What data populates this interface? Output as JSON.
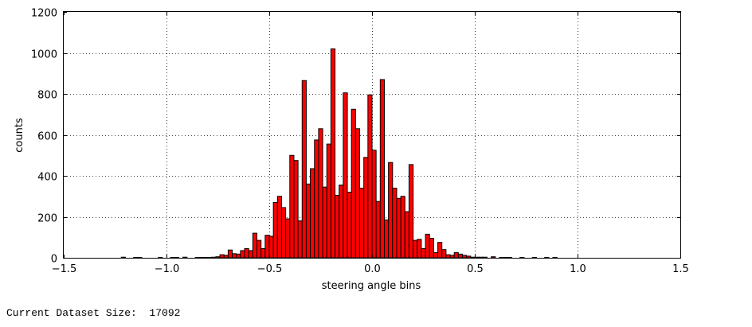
{
  "chart_data": {
    "type": "bar",
    "title": "",
    "xlabel": "steering angle bins",
    "ylabel": "counts",
    "xlim": [
      -1.5,
      1.5
    ],
    "ylim": [
      0,
      1200
    ],
    "xticks": [
      "−1.5",
      "−1.0",
      "−0.5",
      "0.0",
      "0.5",
      "1.0",
      "1.5"
    ],
    "yticks": [
      "0",
      "200",
      "400",
      "600",
      "800",
      "1000",
      "1200"
    ],
    "grid": true,
    "bar_color": "#ff0000",
    "bar_edge_color": "#000000",
    "bin_width": 0.02,
    "bins": [
      [
        -1.22,
        3
      ],
      [
        -1.16,
        2
      ],
      [
        -1.14,
        2
      ],
      [
        -1.04,
        2
      ],
      [
        -0.98,
        2
      ],
      [
        -0.96,
        2
      ],
      [
        -0.92,
        3
      ],
      [
        -0.86,
        2
      ],
      [
        -0.84,
        2
      ],
      [
        -0.82,
        2
      ],
      [
        -0.8,
        2
      ],
      [
        -0.78,
        3
      ],
      [
        -0.76,
        5
      ],
      [
        -0.74,
        15
      ],
      [
        -0.72,
        12
      ],
      [
        -0.7,
        38
      ],
      [
        -0.68,
        20
      ],
      [
        -0.66,
        18
      ],
      [
        -0.64,
        35
      ],
      [
        -0.62,
        45
      ],
      [
        -0.6,
        35
      ],
      [
        -0.58,
        120
      ],
      [
        -0.56,
        85
      ],
      [
        -0.54,
        45
      ],
      [
        -0.52,
        110
      ],
      [
        -0.5,
        105
      ],
      [
        -0.48,
        270
      ],
      [
        -0.46,
        300
      ],
      [
        -0.44,
        245
      ],
      [
        -0.42,
        190
      ],
      [
        -0.4,
        500
      ],
      [
        -0.38,
        475
      ],
      [
        -0.36,
        180
      ],
      [
        -0.34,
        865
      ],
      [
        -0.32,
        360
      ],
      [
        -0.3,
        435
      ],
      [
        -0.28,
        575
      ],
      [
        -0.26,
        630
      ],
      [
        -0.24,
        345
      ],
      [
        -0.22,
        555
      ],
      [
        -0.2,
        1020
      ],
      [
        -0.18,
        305
      ],
      [
        -0.16,
        355
      ],
      [
        -0.14,
        805
      ],
      [
        -0.12,
        320
      ],
      [
        -0.1,
        725
      ],
      [
        -0.08,
        630
      ],
      [
        -0.06,
        340
      ],
      [
        -0.04,
        490
      ],
      [
        -0.02,
        795
      ],
      [
        0.0,
        525
      ],
      [
        0.02,
        275
      ],
      [
        0.04,
        870
      ],
      [
        0.06,
        185
      ],
      [
        0.08,
        465
      ],
      [
        0.1,
        340
      ],
      [
        0.12,
        290
      ],
      [
        0.14,
        300
      ],
      [
        0.16,
        225
      ],
      [
        0.18,
        455
      ],
      [
        0.2,
        85
      ],
      [
        0.22,
        90
      ],
      [
        0.24,
        45
      ],
      [
        0.26,
        115
      ],
      [
        0.28,
        95
      ],
      [
        0.3,
        25
      ],
      [
        0.32,
        75
      ],
      [
        0.34,
        40
      ],
      [
        0.36,
        15
      ],
      [
        0.38,
        12
      ],
      [
        0.4,
        25
      ],
      [
        0.42,
        18
      ],
      [
        0.44,
        12
      ],
      [
        0.46,
        8
      ],
      [
        0.48,
        3
      ],
      [
        0.5,
        3
      ],
      [
        0.52,
        3
      ],
      [
        0.54,
        3
      ],
      [
        0.58,
        5
      ],
      [
        0.62,
        2
      ],
      [
        0.64,
        2
      ],
      [
        0.66,
        2
      ],
      [
        0.72,
        2
      ],
      [
        0.78,
        2
      ],
      [
        0.84,
        2
      ],
      [
        0.88,
        2
      ]
    ]
  },
  "caption": {
    "text": "Current Dataset Size:  17092"
  }
}
